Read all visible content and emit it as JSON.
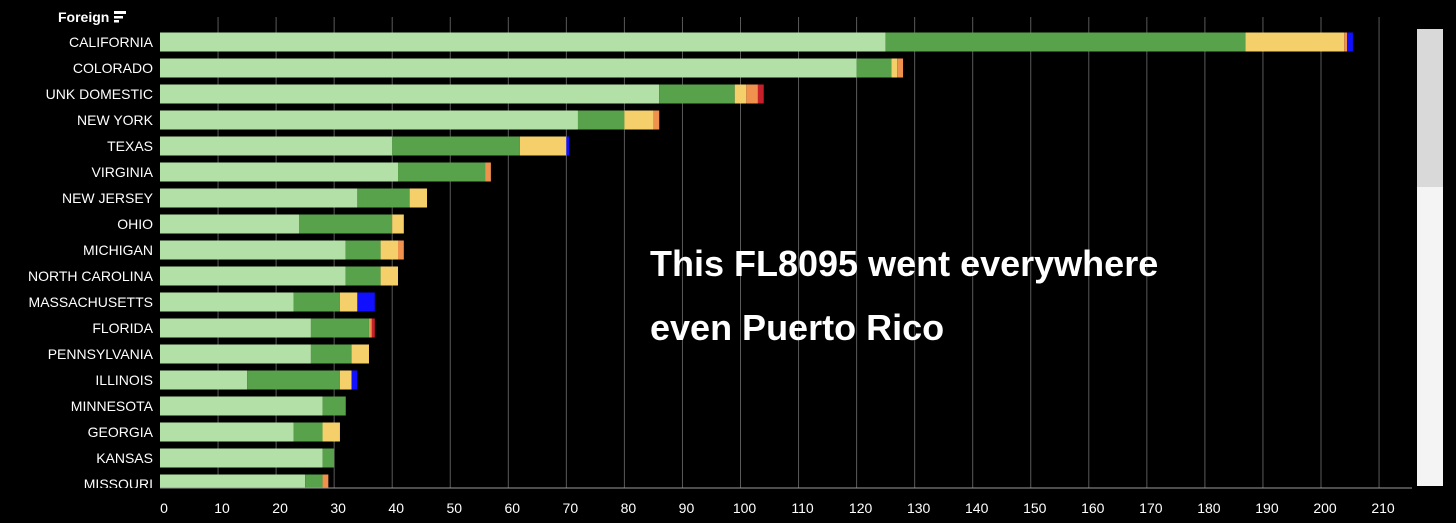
{
  "header": {
    "title": "Foreign",
    "filter_icon": "filter-icon"
  },
  "annotation": {
    "line1": "This FL8095 went everywhere",
    "line2": "even Puerto Rico"
  },
  "colors": {
    "background": "#000000",
    "segments": [
      "#b3e0a6",
      "#57a24a",
      "#f5d06a",
      "#f0924e",
      "#c8202a",
      "#1010ff"
    ],
    "gridline": "#5a5a5a",
    "text": "#ffffff"
  },
  "chart_data": {
    "type": "bar",
    "orientation": "horizontal",
    "stacked": true,
    "xlim": [
      0,
      215
    ],
    "x_ticks": [
      0,
      10,
      20,
      30,
      40,
      50,
      60,
      70,
      80,
      90,
      100,
      110,
      120,
      130,
      140,
      150,
      160,
      170,
      180,
      190,
      200,
      210
    ],
    "grid": "vertical",
    "legend": "none",
    "categories": [
      "CALIFORNIA",
      "COLORADO",
      "UNK DOMESTIC",
      "NEW YORK",
      "TEXAS",
      "VIRGINIA",
      "NEW JERSEY",
      "OHIO",
      "MICHIGAN",
      "NORTH CAROLINA",
      "MASSACHUSETTS",
      "FLORIDA",
      "PENNSYLVANIA",
      "ILLINOIS",
      "MINNESOTA",
      "GEORGIA",
      "KANSAS",
      "MISSOURI"
    ],
    "series": [
      {
        "color": "#b3e0a6",
        "values": [
          125,
          120,
          86,
          72,
          40,
          41,
          34,
          24,
          32,
          32,
          23,
          26,
          26,
          15,
          28,
          23,
          28,
          25
        ]
      },
      {
        "color": "#57a24a",
        "values": [
          62,
          6,
          13,
          8,
          22,
          15,
          9,
          16,
          6,
          6,
          8,
          10,
          7,
          16,
          4,
          5,
          2,
          3
        ]
      },
      {
        "color": "#f5d06a",
        "values": [
          17,
          1,
          2,
          5,
          8,
          0,
          3,
          2,
          3,
          3,
          3,
          0,
          3,
          2,
          0,
          3,
          0,
          0
        ]
      },
      {
        "color": "#f0924e",
        "values": [
          0.5,
          1,
          2,
          1,
          0,
          1,
          0,
          0,
          1,
          0,
          0,
          0.5,
          0,
          0,
          0,
          0,
          0,
          1
        ]
      },
      {
        "color": "#c8202a",
        "values": [
          0,
          0,
          1,
          0,
          0,
          0,
          0,
          0,
          0,
          0,
          0,
          0.5,
          0,
          0,
          0,
          0,
          0,
          0
        ]
      },
      {
        "color": "#1010ff",
        "values": [
          1,
          0,
          0,
          0,
          0.5,
          0,
          0,
          0,
          0,
          0,
          3,
          0,
          0,
          1,
          0,
          0,
          0,
          0
        ]
      }
    ]
  }
}
